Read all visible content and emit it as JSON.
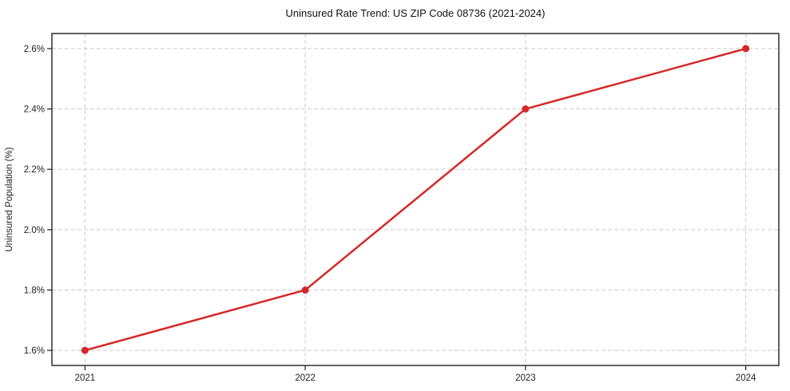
{
  "page": {
    "background": "#ffffff"
  },
  "chart_data": {
    "type": "line",
    "title": "Uninsured Rate Trend: US ZIP Code 08736 (2021-2024)",
    "xlabel": "",
    "ylabel": "Uninsured Population (%)",
    "x": [
      2021,
      2022,
      2023,
      2024
    ],
    "values": [
      1.6,
      1.8,
      2.4,
      2.6
    ],
    "xtick_values": [
      2021,
      2022,
      2023,
      2024
    ],
    "xtick_labels": [
      "2021",
      "2022",
      "2023",
      "2024"
    ],
    "ytick_values": [
      1.6,
      1.8,
      2.0,
      2.2,
      2.4,
      2.6
    ],
    "ytick_labels": [
      "1.6%",
      "1.8%",
      "2.0%",
      "2.2%",
      "2.4%",
      "2.6%"
    ],
    "xlim": [
      2020.85,
      2024.15
    ],
    "ylim": [
      1.55,
      2.65
    ],
    "grid": true,
    "grid_style": "dashed",
    "legend": "none",
    "line_color": "#d62728",
    "marker": "circle",
    "marker_color": "#d62728",
    "marker_radius": 4.5,
    "line_width": 2.5,
    "grid_color": "#cccccc",
    "spine_color": "#1f1f1f",
    "tick_color": "#1f1f1f"
  }
}
